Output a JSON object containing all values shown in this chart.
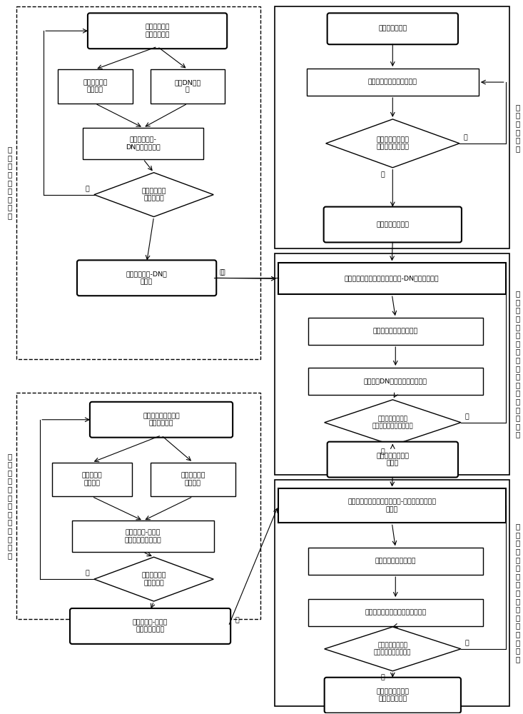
{
  "fig_width": 7.33,
  "fig_height": 10.0,
  "bg_color": "#ffffff",
  "box_color": "#ffffff",
  "box_edge": "#000000",
  "text_color": "#000000",
  "font_size": 6.8,
  "left_panel1_label": "实\n验\n室\n绝\n对\n辐\n射\n定\n标",
  "left_panel2_label": "地\n面\n检\n校\n场\n在\n轨\n绝\n对\n辐\n射\n定\n标",
  "right_panel1_label": "相\n对\n辐\n射\n校\n正",
  "right_panel2_label": "基\n于\n实\n验\n室\n绝\n对\n定\n标\n结\n果\n的\n绝\n对\n辐\n射\n校\n正",
  "right_panel3_label": "基\n于\n在\n轨\n绝\n对\n定\n标\n结\n果\n的\n绝\n对\n辐\n射\n校\n正",
  "L1_rb1_text": "各谱段实验室\n辐射定标数据",
  "L1_rb2_text": "实验室标准辐\n亮度计算",
  "L1_rb3_text": "标准DN值计\n算",
  "L1_rb4_text": "实验室辐亮度-\nDN值查找表构建",
  "L1_dia1_text": "所有谱段完成\n查找表构建",
  "L1_rb5_text": "实验室辐亮度-DN值\n查找表",
  "R1_rb1_text": "多光谱原始影像",
  "R1_rb2_text": "各谱段各像元相对辐射校正",
  "R1_dia1_text": "所有谱段所有像元\n完成相对辐射校正",
  "R1_rb3_text": "相对辐射校正影像",
  "M_rb1_text": "解求各谱段各像元实验室辐亮度-DN值查找表区间",
  "M_rb2_text": "解算实验室绝对定标系数",
  "M_rb3_text": "计算像元DN值对应实验室辐亮度",
  "M_dia1_text": "所有谱段所有像元\n完成实验室绝对辐射校正",
  "M_rb4_text": "实验室绝对辐射校\n正影像",
  "L2_rb1_text": "地面检校场靶标在轨\n辐射定标数据",
  "L2_rb2_text": "靶标在轨辐\n亮度计算",
  "L2_rb3_text": "靶标实验室辐\n亮度获取",
  "L2_rb4_text": "在轨辐亮度-实验室\n辐亮度值查找表构建",
  "L2_dia1_text": "所有谱段完成\n查找表构建",
  "L2_rb5_text": "在轨辐亮度-实验室\n辐亮度值查找表",
  "B_rb1_text": "解求各谱段各像元在轨辐亮度-实验室辐亮度查找\n表区间",
  "B_rb2_text": "解算在轨绝对定标系数",
  "B_rb3_text": "计算实验室辐亮度对应在轨辐亮度",
  "B_dia1_text": "所有谱段所有像元\n完成在轨绝对辐射校正",
  "B_rb4_text": "地面检校场在轨绝\n对辐射校正影像"
}
